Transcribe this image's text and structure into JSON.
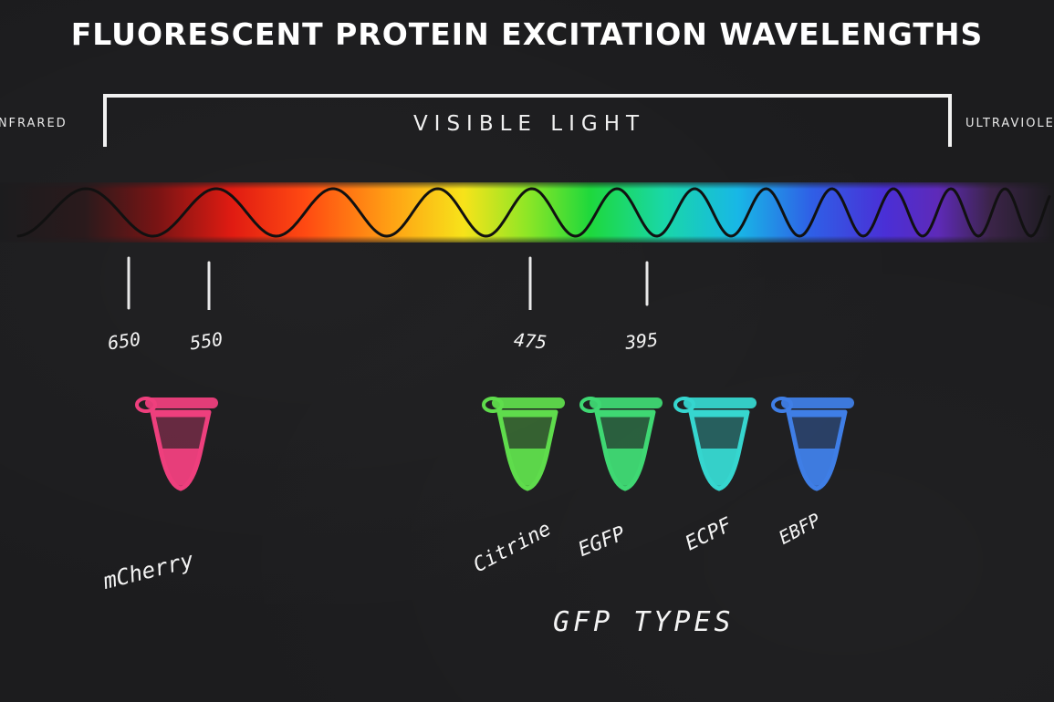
{
  "title": "FLUORESCENT PROTEIN EXCITATION WAVELENGTHS",
  "regions": {
    "infrared": "INFRARED",
    "visible": "VISIBLE LIGHT",
    "ultraviolet": "ULTRAVIOLET"
  },
  "wavelength_markers": [
    "650",
    "550",
    "475",
    "395"
  ],
  "proteins": [
    {
      "name": "mCherry",
      "color": "#ee3f7d"
    },
    {
      "name": "Citrine",
      "color": "#5fdc4c"
    },
    {
      "name": "EGFP",
      "color": "#3fd873"
    },
    {
      "name": "ECPF",
      "color": "#36d6cf"
    },
    {
      "name": "EBFP",
      "color": "#3f7ee6"
    }
  ],
  "group_label": "GFP TYPES",
  "colors": {
    "background": "#1c1c1e",
    "text": "#f4f4f4"
  }
}
